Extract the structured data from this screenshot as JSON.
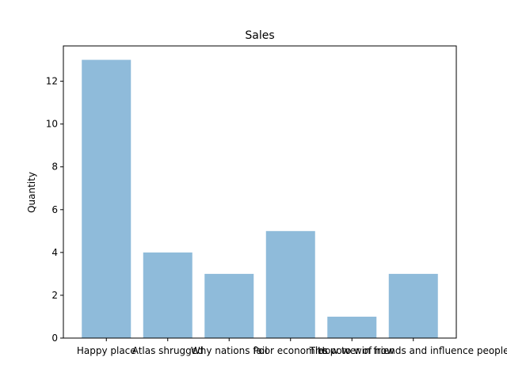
{
  "chart_data": {
    "type": "bar",
    "title": "Sales",
    "xlabel": "",
    "ylabel": "Quantity",
    "categories": [
      "Happy place",
      "Atlas shrugged",
      "Why nations fail",
      "Poor economics",
      "The power of now",
      "How to win friends and influence people"
    ],
    "values": [
      13,
      4,
      3,
      5,
      1,
      3
    ],
    "ylim": [
      0,
      13.65
    ],
    "yticks": [
      0,
      2,
      4,
      6,
      8,
      10,
      12
    ],
    "ytick_labels": [
      "0",
      "2",
      "4",
      "6",
      "8",
      "10",
      "12"
    ],
    "bar_color": "#8fbbda",
    "grid": false,
    "legend": "none"
  }
}
